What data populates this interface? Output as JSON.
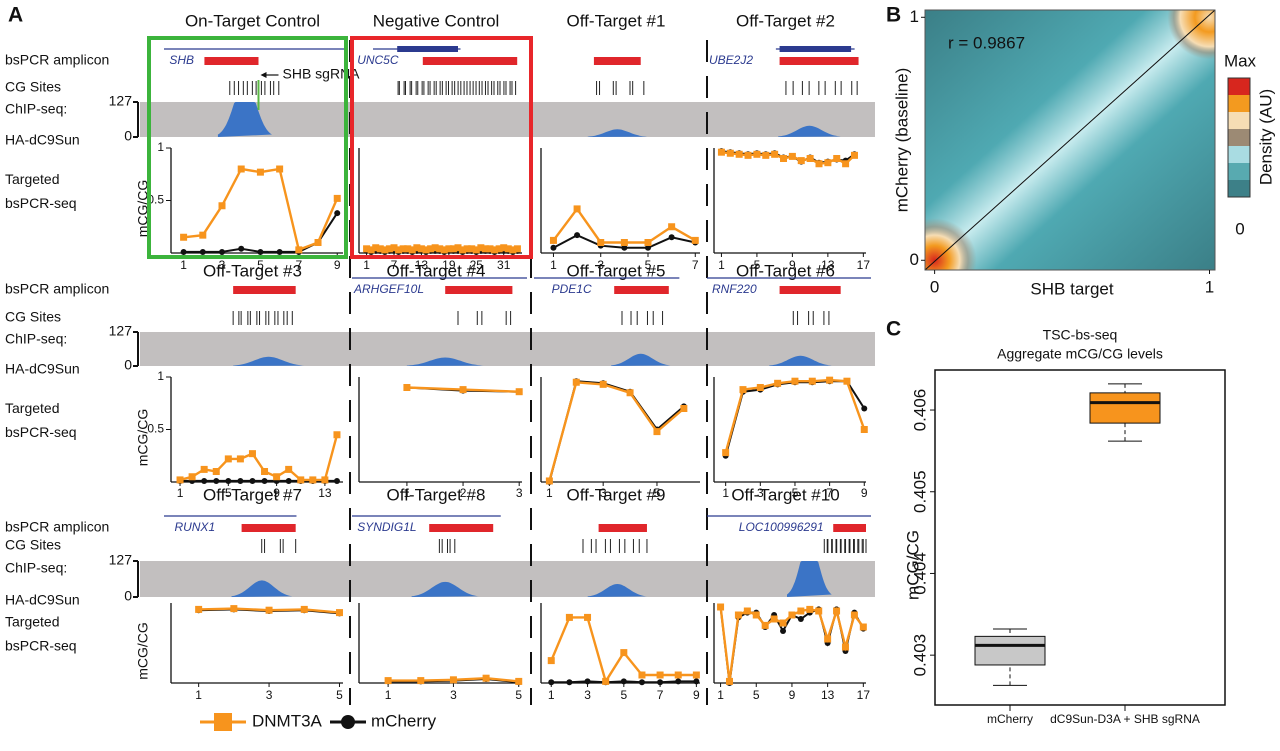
{
  "panel_labels": [
    "A",
    "B",
    "C"
  ],
  "track_labels": {
    "amplicon": "bsPCR amplicon",
    "cg": "CG Sites",
    "chip1": "ChIP-seq:",
    "chip2": "HA-dC9Sun",
    "seq1": "Targeted",
    "seq2": "bsPCR-seq"
  },
  "chip_ylim": [
    0,
    127
  ],
  "chip_yticks": [
    0,
    127
  ],
  "chart_data": [
    {
      "type": "line",
      "title": "On-Target Control",
      "gene": "SHB",
      "annotation": "SHB sgRNA",
      "ylabel": "mCG/CG",
      "x": [
        1,
        2,
        3,
        4,
        5,
        6,
        7,
        8,
        9
      ],
      "xlim": [
        0.5,
        9.3
      ],
      "xticks": [
        1,
        3,
        5,
        7,
        9
      ],
      "ylim": [
        0,
        1
      ],
      "yticks": [
        0.5,
        1
      ],
      "series": [
        {
          "name": "DNMT3A",
          "color": "#f7941d",
          "values": [
            0.15,
            0.17,
            0.45,
            0.8,
            0.77,
            0.8,
            0.03,
            0.1,
            0.52
          ]
        },
        {
          "name": "mCherry",
          "color": "#111111",
          "values": [
            0.01,
            0.01,
            0.01,
            0.04,
            0.01,
            0.01,
            0.01,
            0.1,
            0.38
          ]
        }
      ]
    },
    {
      "type": "line",
      "title": "Negative Control",
      "gene": "UNC5C",
      "x": [
        1,
        2,
        3,
        4,
        5,
        6,
        7,
        8,
        9,
        10,
        11,
        12,
        13,
        14,
        15,
        16,
        17,
        18,
        19,
        20,
        21,
        22,
        23,
        24,
        25,
        26,
        27,
        28,
        29,
        30,
        31,
        32,
        33,
        34
      ],
      "xlim": [
        0,
        35
      ],
      "xticks": [
        1,
        7,
        13,
        19,
        25,
        31
      ],
      "ylim": [
        0,
        1
      ],
      "series": [
        {
          "name": "DNMT3A",
          "color": "#f7941d",
          "values": [
            0.04,
            0.03,
            0.05,
            0.04,
            0.03,
            0.04,
            0.05,
            0.03,
            0.04,
            0.04,
            0.03,
            0.05,
            0.04,
            0.03,
            0.04,
            0.05,
            0.04,
            0.03,
            0.04,
            0.04,
            0.05,
            0.03,
            0.04,
            0.04,
            0.03,
            0.05,
            0.04,
            0.04,
            0.03,
            0.04,
            0.05,
            0.04,
            0.03,
            0.04
          ]
        },
        {
          "name": "mCherry",
          "color": "#111111",
          "values": [
            0.02,
            0.01,
            0.02,
            0.02,
            0.01,
            0.02,
            0.02,
            0.01,
            0.02,
            0.02,
            0.01,
            0.02,
            0.02,
            0.01,
            0.02,
            0.02,
            0.02,
            0.01,
            0.02,
            0.02,
            0.02,
            0.01,
            0.02,
            0.02,
            0.01,
            0.02,
            0.02,
            0.02,
            0.01,
            0.02,
            0.02,
            0.02,
            0.01,
            0.02
          ]
        }
      ]
    },
    {
      "type": "line",
      "title": "Off-Target #1",
      "x": [
        1,
        2,
        3,
        4,
        5,
        6,
        7
      ],
      "xlim": [
        0.6,
        7.2
      ],
      "xticks": [
        1,
        3,
        5,
        7
      ],
      "ylim": [
        0,
        1
      ],
      "series": [
        {
          "name": "DNMT3A",
          "color": "#f7941d",
          "values": [
            0.12,
            0.42,
            0.1,
            0.1,
            0.1,
            0.25,
            0.12
          ]
        },
        {
          "name": "mCherry",
          "color": "#111111",
          "values": [
            0.05,
            0.17,
            0.07,
            0.05,
            0.05,
            0.15,
            0.1
          ]
        }
      ]
    },
    {
      "type": "line",
      "title": "Off-Target #2",
      "gene": "UBE2J2",
      "x": [
        1,
        2,
        3,
        4,
        5,
        6,
        7,
        8,
        9,
        10,
        11,
        12,
        13,
        14,
        15,
        16
      ],
      "xlim": [
        0.5,
        17.3
      ],
      "xticks": [
        1,
        5,
        9,
        13,
        17
      ],
      "ylim": [
        0,
        1
      ],
      "series": [
        {
          "name": "DNMT3A",
          "color": "#f7941d",
          "values": [
            0.96,
            0.95,
            0.94,
            0.93,
            0.94,
            0.93,
            0.94,
            0.9,
            0.92,
            0.88,
            0.9,
            0.85,
            0.86,
            0.9,
            0.85,
            0.93
          ]
        },
        {
          "name": "mCherry",
          "color": "#111111",
          "values": [
            0.97,
            0.96,
            0.95,
            0.94,
            0.95,
            0.94,
            0.95,
            0.91,
            0.92,
            0.87,
            0.91,
            0.86,
            0.87,
            0.89,
            0.88,
            0.94
          ]
        }
      ]
    },
    {
      "type": "line",
      "title": "Off-Target #3",
      "ylabel": "mCG/CG",
      "x": [
        1,
        2,
        3,
        4,
        5,
        6,
        7,
        8,
        9,
        10,
        11,
        12,
        13,
        14
      ],
      "xlim": [
        0.5,
        14.5
      ],
      "xticks": [
        1,
        5,
        9,
        13
      ],
      "ylim": [
        0,
        1
      ],
      "yticks": [
        0.5,
        1
      ],
      "series": [
        {
          "name": "DNMT3A",
          "color": "#f7941d",
          "values": [
            0.02,
            0.05,
            0.12,
            0.1,
            0.22,
            0.22,
            0.27,
            0.1,
            0.05,
            0.12,
            0.02,
            0.02,
            0.02,
            0.45
          ]
        },
        {
          "name": "mCherry",
          "color": "#111111",
          "values": [
            0.01,
            0.01,
            0.01,
            0.01,
            0.01,
            0.01,
            0.01,
            0.01,
            0.01,
            0.01,
            0.01,
            0.01,
            0.01,
            0.01
          ]
        }
      ]
    },
    {
      "type": "line",
      "title": "Off-Target #4",
      "gene": "ARHGEF10L",
      "x": [
        1,
        2,
        3
      ],
      "xlim": [
        0.2,
        3.05
      ],
      "xticks": [
        1,
        2,
        3
      ],
      "ylim": [
        0,
        1
      ],
      "series": [
        {
          "name": "DNMT3A",
          "color": "#f7941d",
          "values": [
            0.9,
            0.88,
            0.86
          ]
        },
        {
          "name": "mCherry",
          "color": "#111111",
          "values": [
            0.9,
            0.87,
            0.86
          ]
        }
      ]
    },
    {
      "type": "line",
      "title": "Off-Target #5",
      "gene": "PDE1C",
      "x": [
        1,
        2,
        3,
        4,
        5,
        6
      ],
      "xlim": [
        0.8,
        6.6
      ],
      "xticks": [
        1,
        3,
        5
      ],
      "ylim": [
        0,
        1
      ],
      "series": [
        {
          "name": "DNMT3A",
          "color": "#f7941d",
          "values": [
            0.01,
            0.95,
            0.93,
            0.85,
            0.48,
            0.7
          ]
        },
        {
          "name": "mCherry",
          "color": "#111111",
          "values": [
            0.0,
            0.96,
            0.94,
            0.86,
            0.5,
            0.72
          ]
        }
      ]
    },
    {
      "type": "line",
      "title": "Off-Target #6",
      "gene": "RNF220",
      "x": [
        1,
        2,
        3,
        4,
        5,
        6,
        7,
        8,
        9
      ],
      "xlim": [
        0.5,
        9.1
      ],
      "xticks": [
        1,
        3,
        5,
        7,
        9
      ],
      "ylim": [
        0,
        1
      ],
      "series": [
        {
          "name": "DNMT3A",
          "color": "#f7941d",
          "values": [
            0.28,
            0.88,
            0.9,
            0.94,
            0.96,
            0.96,
            0.97,
            0.96,
            0.5
          ]
        },
        {
          "name": "mCherry",
          "color": "#111111",
          "values": [
            0.25,
            0.86,
            0.88,
            0.93,
            0.95,
            0.95,
            0.96,
            0.96,
            0.7
          ]
        }
      ]
    },
    {
      "type": "line",
      "title": "Off-Target #7",
      "gene": "RUNX1",
      "ylabel": "mCG/CG",
      "x": [
        1,
        2,
        3,
        4,
        5
      ],
      "xlim": [
        0.3,
        5.1
      ],
      "xticks": [
        1,
        3,
        5
      ],
      "ylim": [
        0,
        1
      ],
      "series": [
        {
          "name": "DNMT3A",
          "color": "#f7941d",
          "values": [
            0.92,
            0.93,
            0.91,
            0.92,
            0.88
          ]
        },
        {
          "name": "mCherry",
          "color": "#111111",
          "values": [
            0.91,
            0.92,
            0.9,
            0.91,
            0.87
          ]
        }
      ]
    },
    {
      "type": "line",
      "title": "Off-Target #8",
      "gene": "SYNDIG1L",
      "x": [
        1,
        2,
        3,
        4,
        5
      ],
      "xlim": [
        0.2,
        5.1
      ],
      "xticks": [
        1,
        3,
        5
      ],
      "ylim": [
        0,
        1
      ],
      "series": [
        {
          "name": "DNMT3A",
          "color": "#f7941d",
          "values": [
            0.03,
            0.03,
            0.04,
            0.06,
            0.02
          ]
        },
        {
          "name": "mCherry",
          "color": "#111111",
          "values": [
            0.02,
            0.02,
            0.03,
            0.05,
            0.01
          ]
        }
      ]
    },
    {
      "type": "line",
      "title": "Off-Target #9",
      "x": [
        1,
        2,
        3,
        4,
        5,
        6,
        7,
        8,
        9
      ],
      "xlim": [
        0.6,
        9.2
      ],
      "xticks": [
        1,
        3,
        5,
        7,
        9
      ],
      "ylim": [
        0,
        1
      ],
      "series": [
        {
          "name": "DNMT3A",
          "color": "#f7941d",
          "values": [
            0.28,
            0.82,
            0.82,
            0.02,
            0.38,
            0.1,
            0.1,
            0.1,
            0.1
          ]
        },
        {
          "name": "mCherry",
          "color": "#111111",
          "values": [
            0.01,
            0.01,
            0.02,
            0.01,
            0.02,
            0.01,
            0.01,
            0.02,
            0.02
          ]
        }
      ]
    },
    {
      "type": "line",
      "title": "Off-Target #10",
      "gene": "LOC100996291",
      "x": [
        1,
        2,
        3,
        4,
        5,
        6,
        7,
        8,
        9,
        10,
        11,
        12,
        13,
        14,
        15,
        16,
        17
      ],
      "xlim": [
        0.6,
        17.3
      ],
      "xticks": [
        1,
        5,
        9,
        13,
        17
      ],
      "ylim": [
        0,
        1
      ],
      "series": [
        {
          "name": "DNMT3A",
          "color": "#f7941d",
          "values": [
            0.95,
            0.02,
            0.85,
            0.9,
            0.85,
            0.72,
            0.8,
            0.75,
            0.85,
            0.9,
            0.92,
            0.9,
            0.55,
            0.9,
            0.45,
            0.85,
            0.7
          ]
        },
        {
          "name": "mCherry",
          "color": "#111111",
          "values": [
            0.95,
            0.0,
            0.82,
            0.88,
            0.88,
            0.7,
            0.85,
            0.65,
            0.85,
            0.8,
            0.88,
            0.92,
            0.5,
            0.92,
            0.4,
            0.88,
            0.68
          ]
        }
      ]
    },
    {
      "type": "density",
      "annotation": "r = 0.9867",
      "xlabel": "SHB target",
      "ylabel": "mCherry (baseline)",
      "xlim": [
        -0.035,
        1.02
      ],
      "ylim": [
        -0.04,
        1.03
      ],
      "xticks": [
        0,
        1
      ],
      "yticks": [
        0,
        1
      ],
      "colorbar": {
        "max": "Max",
        "min": "0",
        "title": "Density (AU)",
        "colors": [
          "#d7261e",
          "#f39a1f",
          "#f6ddb4",
          "#9c8a74",
          "#a9dce2",
          "#58aab0",
          "#3d8088"
        ]
      }
    },
    {
      "type": "box",
      "title": [
        "TSC-bs-seq",
        "Aggregate mCG/CG levels"
      ],
      "ylabel": "mCG/CG",
      "categories": [
        "mCherry",
        "dC9Sun-D3A + SHB sgRNA"
      ],
      "ylim": [
        0.40239,
        0.40649
      ],
      "yticks": [
        0.403,
        0.404,
        0.405,
        0.406
      ],
      "boxes": [
        {
          "whislo": 0.40263,
          "q1": 0.40288,
          "median": 0.40312,
          "q3": 0.40323,
          "whishi": 0.40332,
          "color": "#c8c8c8"
        },
        {
          "whislo": 0.40562,
          "q1": 0.40584,
          "median": 0.40609,
          "q3": 0.40621,
          "whishi": 0.40632,
          "color": "#f7941d"
        }
      ]
    }
  ]
}
